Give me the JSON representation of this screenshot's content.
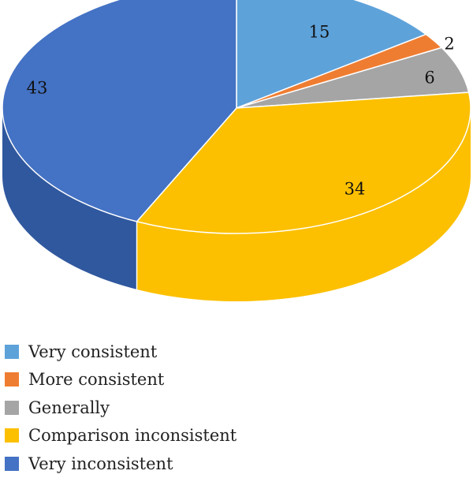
{
  "chart_data": {
    "type": "pie",
    "categories": [
      "Very consistent",
      "More consistent",
      "Generally",
      "Comparison inconsistent",
      "Very inconsistent"
    ],
    "values": [
      15,
      2,
      6,
      34,
      43
    ],
    "colors": [
      "#5ea2da",
      "#ef7d31",
      "#a5a5a5",
      "#fcc000",
      "#4472c4"
    ],
    "side_colors": [
      "#4f8cc0",
      "#c96a2a",
      "#8c8c8c",
      "#fcc000",
      "#30589e"
    ],
    "start_angle_deg": 90,
    "direction": "clockwise",
    "style": "3d",
    "legend_position": "bottom-left"
  }
}
